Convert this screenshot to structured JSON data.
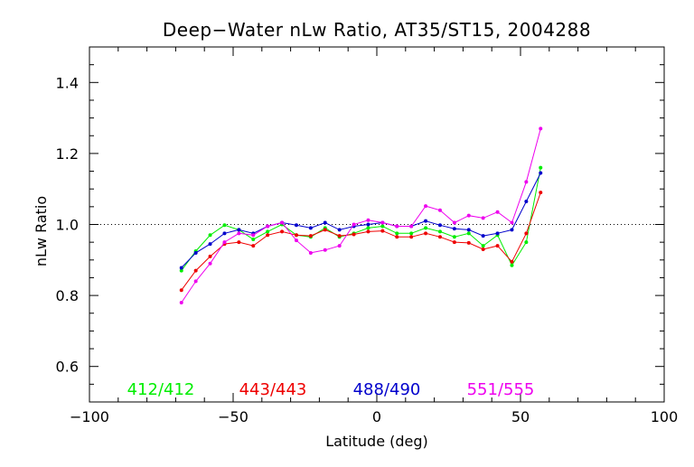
{
  "chart_data": {
    "type": "line",
    "title": "Deep−Water nLw Ratio, AT35/ST15, 2004288",
    "xlabel": "Latitude (deg)",
    "ylabel": "nLw Ratio",
    "xlim": [
      -100,
      100
    ],
    "ylim": [
      0.5,
      1.5
    ],
    "xticks": [
      -100,
      -50,
      0,
      50,
      100
    ],
    "xtick_labels": [
      "−100",
      "−50",
      "0",
      "50",
      "100"
    ],
    "yticks": [
      0.6,
      0.8,
      1.0,
      1.2,
      1.4
    ],
    "ytick_labels": [
      "0.6",
      "0.8",
      "1.0",
      "1.2",
      "1.4"
    ],
    "reference_line": {
      "y": 1.0,
      "style": "dotted"
    },
    "grid": false,
    "legend_placement": "bottom-inside",
    "x": [
      -68,
      -63,
      -58,
      -53,
      -48,
      -43,
      -38,
      -33,
      -28,
      -23,
      -18,
      -13,
      -8,
      -3,
      2,
      7,
      12,
      17,
      22,
      27,
      32,
      37,
      42,
      47,
      52,
      57
    ],
    "series": [
      {
        "name": "412/412",
        "color": "#00ee00",
        "values": [
          0.87,
          0.925,
          0.97,
          0.998,
          0.985,
          0.958,
          0.98,
          1.0,
          0.97,
          0.965,
          0.99,
          0.965,
          0.975,
          0.99,
          0.995,
          0.975,
          0.975,
          0.99,
          0.98,
          0.965,
          0.975,
          0.94,
          0.97,
          0.885,
          0.95,
          1.16
        ]
      },
      {
        "name": "443/443",
        "color": "#ee0000",
        "values": [
          0.815,
          0.87,
          0.91,
          0.945,
          0.95,
          0.94,
          0.97,
          0.98,
          0.97,
          0.968,
          0.985,
          0.968,
          0.972,
          0.98,
          0.982,
          0.965,
          0.965,
          0.975,
          0.965,
          0.95,
          0.948,
          0.93,
          0.94,
          0.895,
          0.975,
          1.09
        ]
      },
      {
        "name": "488/490",
        "color": "#0000cc",
        "values": [
          0.878,
          0.92,
          0.945,
          0.975,
          0.985,
          0.975,
          0.995,
          1.005,
          0.998,
          0.99,
          1.005,
          0.985,
          0.995,
          1.0,
          1.005,
          0.995,
          0.995,
          1.01,
          0.998,
          0.988,
          0.985,
          0.968,
          0.975,
          0.985,
          1.065,
          1.145
        ]
      },
      {
        "name": "551/555",
        "color": "#ee00ee",
        "values": [
          0.78,
          0.84,
          0.89,
          0.95,
          0.975,
          0.97,
          0.995,
          1.005,
          0.955,
          0.92,
          0.928,
          0.94,
          1.0,
          1.012,
          1.005,
          0.995,
          0.995,
          1.052,
          1.04,
          1.005,
          1.025,
          1.018,
          1.035,
          1.005,
          1.12,
          1.27
        ]
      }
    ]
  }
}
